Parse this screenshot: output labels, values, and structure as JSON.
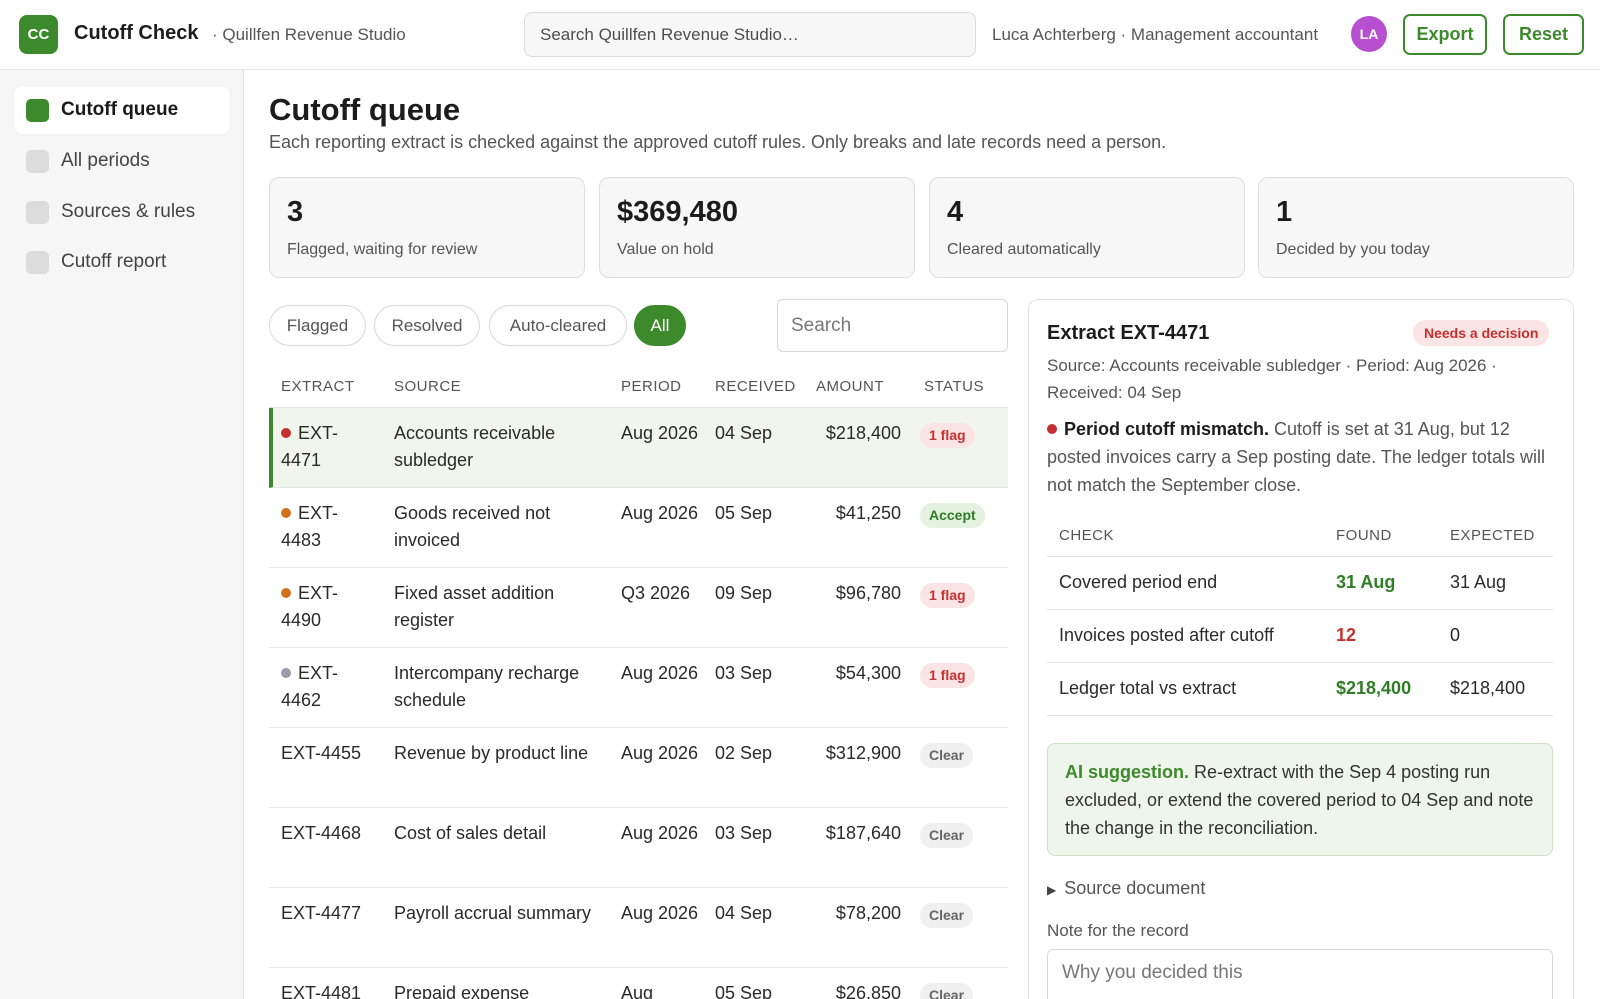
{
  "app": {
    "logo": "CC",
    "name": "Cutoff Check",
    "workspace": "· Quillfen Revenue Studio",
    "search_placeholder": "Search Quillfen Revenue Studio…",
    "user_label": "Luca Achterberg · Management accountant",
    "avatar": "LA",
    "export_label": "Export",
    "reset_label": "Reset",
    "accent_color": "#3d8a2c"
  },
  "sidebar": {
    "items": [
      {
        "label": "Cutoff queue",
        "active": true
      },
      {
        "label": "All periods",
        "active": false
      },
      {
        "label": "Sources & rules",
        "active": false
      },
      {
        "label": "Cutoff report",
        "active": false
      }
    ]
  },
  "page": {
    "title": "Cutoff queue",
    "description": "Each reporting extract is checked against the approved cutoff rules. Only breaks and late records need a person."
  },
  "kpis": [
    {
      "value": "3",
      "label": "Flagged, waiting for review"
    },
    {
      "value": "$369,480",
      "label": "Value on hold"
    },
    {
      "value": "4",
      "label": "Cleared automatically"
    },
    {
      "value": "1",
      "label": "Decided by you today"
    }
  ],
  "filters": {
    "pills": [
      "Flagged",
      "Resolved",
      "Auto-cleared",
      "All"
    ],
    "active": "All",
    "search_placeholder": "Search"
  },
  "table": {
    "headers": [
      "EXTRACT",
      "SOURCE",
      "PERIOD",
      "RECEIVED",
      "AMOUNT",
      "STATUS"
    ],
    "rows": [
      {
        "id": "EXT-4471",
        "id_wrapped": [
          "EXT-",
          "4471"
        ],
        "source": "Accounts receivable subledger",
        "period": "Aug 2026",
        "received": "04 Sep",
        "amount": "$218,400",
        "status": "1 flag",
        "dot": "#c63030",
        "selected": true
      },
      {
        "id": "EXT-4483",
        "id_wrapped": [
          "EXT-",
          "4483"
        ],
        "source": "Goods received not invoiced",
        "period": "Aug 2026",
        "received": "05 Sep",
        "amount": "$41,250",
        "status": "Accept",
        "dot": "#d4711f",
        "selected": false
      },
      {
        "id": "EXT-4490",
        "id_wrapped": [
          "EXT-",
          "4490"
        ],
        "source": "Fixed asset addition register",
        "period": "Q3 2026",
        "received": "09 Sep",
        "amount": "$96,780",
        "status": "1 flag",
        "dot": "#d4711f",
        "selected": false
      },
      {
        "id": "EXT-4462",
        "id_wrapped": [
          "EXT-",
          "4462"
        ],
        "source": "Intercompany recharge schedule",
        "period": "Aug 2026",
        "received": "03 Sep",
        "amount": "$54,300",
        "status": "1 flag",
        "dot": "#9a9aa8",
        "selected": false
      },
      {
        "id": "EXT-4455",
        "source": "Revenue by product line",
        "period": "Aug 2026",
        "received": "02 Sep",
        "amount": "$312,900",
        "status": "Clear",
        "selected": false
      },
      {
        "id": "EXT-4468",
        "source": "Cost of sales detail",
        "period": "Aug 2026",
        "received": "03 Sep",
        "amount": "$187,640",
        "status": "Clear",
        "selected": false
      },
      {
        "id": "EXT-4477",
        "source": "Payroll accrual summary",
        "period": "Aug 2026",
        "received": "04 Sep",
        "amount": "$78,200",
        "status": "Clear",
        "selected": false
      },
      {
        "id": "EXT-4481",
        "source": "Prepaid expense",
        "period": "Aug",
        "received": "05 Sep",
        "amount": "$26,850",
        "status": "Clear",
        "selected": false
      }
    ]
  },
  "detail": {
    "title": "Extract EXT-4471",
    "badge": "Needs a decision",
    "meta": "Source: Accounts receivable subledger · Period: Aug 2026 · Received: 04 Sep",
    "issue_title": "Period cutoff mismatch.",
    "issue_text": "Cutoff is set at 31 Aug, but 12 posted invoices carry a Sep posting date. The ledger totals will not match the September close.",
    "check_headers": [
      "CHECK",
      "FOUND",
      "EXPECTED"
    ],
    "checks": [
      {
        "check": "Covered period end",
        "found": "31 Aug",
        "expected": "31 Aug",
        "ok": true
      },
      {
        "check": "Invoices posted after cutoff",
        "found": "12",
        "expected": "0",
        "ok": false
      },
      {
        "check": "Ledger total vs extract",
        "found": "$218,400",
        "expected": "$218,400",
        "ok": true
      }
    ],
    "ai_title": "AI suggestion.",
    "ai_text": "Re-extract with the Sep 4 posting run excluded, or extend the covered period to 04 Sep and note the change in the reconciliation.",
    "source_doc": "Source document",
    "note_label": "Note for the record",
    "note_placeholder": "Why you decided this"
  }
}
